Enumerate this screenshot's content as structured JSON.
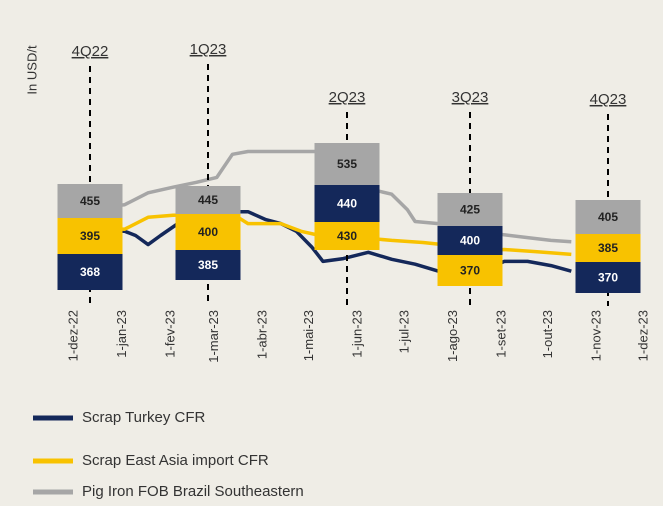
{
  "chart_data": {
    "type": "line",
    "ylabel": "In USD/t",
    "xlim": [
      "2022-12-01",
      "2023-12-01"
    ],
    "ylim": [
      320,
      580
    ],
    "xticks": [
      {
        "value": "2022-12-01",
        "label": "1-dez-22"
      },
      {
        "value": "2023-01-01",
        "label": "1-jan-23"
      },
      {
        "value": "2023-02-01",
        "label": "1-fev-23"
      },
      {
        "value": "2023-03-01",
        "label": "1-mar-23"
      },
      {
        "value": "2023-04-01",
        "label": "1-abr-23"
      },
      {
        "value": "2023-05-01",
        "label": "1-mai-23"
      },
      {
        "value": "2023-06-01",
        "label": "1-jun-23"
      },
      {
        "value": "2023-07-01",
        "label": "1-jul-23"
      },
      {
        "value": "2023-08-01",
        "label": "1-ago-23"
      },
      {
        "value": "2023-09-01",
        "label": "1-set-23"
      },
      {
        "value": "2023-10-01",
        "label": "1-out-23"
      },
      {
        "value": "2023-11-01",
        "label": "1-nov-23"
      },
      {
        "value": "2023-12-01",
        "label": "1-dez-23"
      }
    ],
    "series": [
      {
        "name": "Scrap Turkey CFR",
        "color": "#14285a",
        "x": [
          "2022-12-05",
          "2022-12-20",
          "2023-01-05",
          "2023-01-12",
          "2023-01-20",
          "2023-01-28",
          "2023-02-10",
          "2023-02-25",
          "2023-03-10",
          "2023-03-25",
          "2023-04-05",
          "2023-04-15",
          "2023-04-25",
          "2023-05-05",
          "2023-05-12",
          "2023-05-25",
          "2023-06-10",
          "2023-06-25",
          "2023-07-10",
          "2023-07-25",
          "2023-08-05",
          "2023-08-25",
          "2023-09-05",
          "2023-09-20",
          "2023-10-05",
          "2023-10-18"
        ],
        "values": [
          421,
          421,
          421,
          415,
          402,
          415,
          435,
          445,
          449,
          449,
          438,
          432,
          421,
          398,
          378,
          382,
          391,
          381,
          374,
          364,
          349,
          366,
          378,
          378,
          372,
          364
        ]
      },
      {
        "name": "Scrap East Asia import CFR",
        "color": "#f8c200",
        "x": [
          "2022-12-05",
          "2022-12-20",
          "2023-01-05",
          "2023-01-20",
          "2023-02-05",
          "2023-02-25",
          "2023-03-15",
          "2023-03-25",
          "2023-04-15",
          "2023-04-28",
          "2023-05-10",
          "2023-06-05",
          "2023-06-25",
          "2023-07-15",
          "2023-07-28",
          "2023-08-10",
          "2023-09-05",
          "2023-09-25",
          "2023-10-18"
        ],
        "values": [
          426,
          426,
          424,
          441,
          444,
          445,
          446,
          432,
          432,
          421,
          415,
          412,
          408,
          405,
          402,
          389,
          395,
          392,
          388
        ]
      },
      {
        "name": "Pig Iron FOB Brazil Southeastern",
        "color": "#a6a6a6",
        "x": [
          "2022-12-05",
          "2022-12-20",
          "2023-01-05",
          "2023-01-20",
          "2023-02-05",
          "2023-02-20",
          "2023-03-05",
          "2023-03-15",
          "2023-03-25",
          "2023-04-15",
          "2023-05-01",
          "2023-05-08",
          "2023-05-20",
          "2023-06-10",
          "2023-06-25",
          "2023-07-05",
          "2023-07-10",
          "2023-07-25",
          "2023-08-15",
          "2023-09-05",
          "2023-09-20",
          "2023-10-05",
          "2023-10-18"
        ],
        "values": [
          452,
          455,
          459,
          476,
          484,
          491,
          498,
          531,
          535,
          535,
          535,
          535,
          488,
          482,
          474,
          452,
          435,
          432,
          424,
          416,
          412,
          408,
          406
        ]
      }
    ],
    "annotations": [
      {
        "label": "4Q22",
        "values": [
          368,
          395,
          455
        ]
      },
      {
        "label": "1Q23",
        "values": [
          385,
          400,
          445
        ]
      },
      {
        "label": "2Q23",
        "values": [
          440,
          430,
          535
        ]
      },
      {
        "label": "3Q23",
        "values": [
          400,
          370,
          425
        ]
      },
      {
        "label": "4Q23",
        "values": [
          370,
          385,
          405
        ]
      }
    ]
  }
}
